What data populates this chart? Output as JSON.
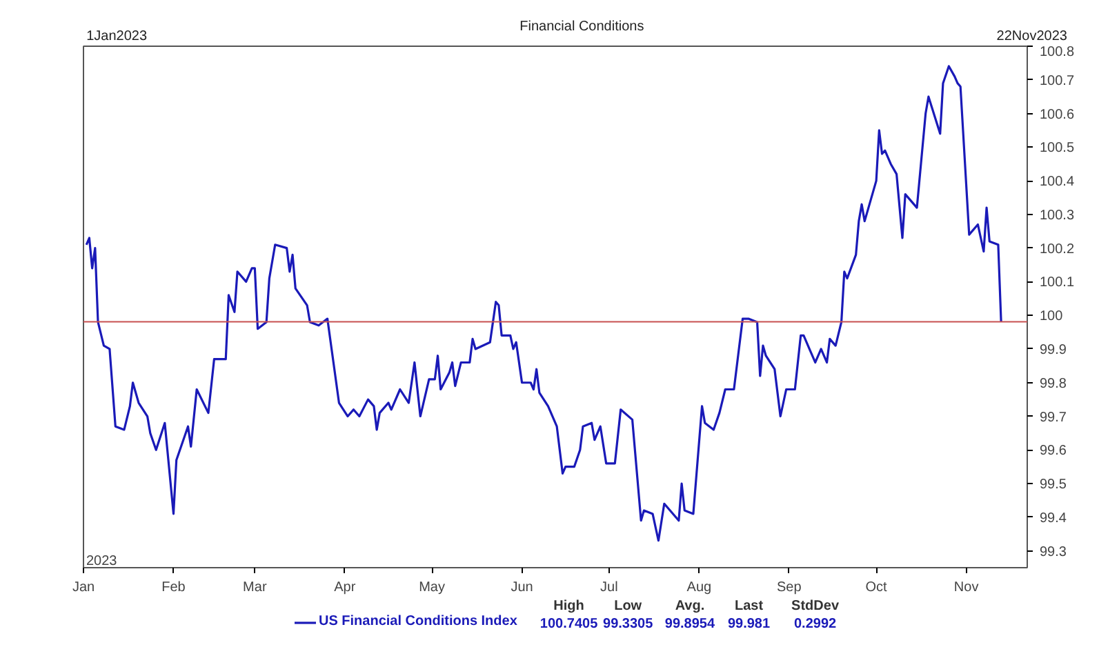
{
  "chart_data": {
    "type": "line",
    "title": "Financial Conditions",
    "x": [
      "2023-01-02",
      "2023-01-03",
      "2023-01-04",
      "2023-01-05",
      "2023-01-06",
      "2023-01-08",
      "2023-01-10",
      "2023-01-12",
      "2023-01-15",
      "2023-01-17",
      "2023-01-18",
      "2023-01-20",
      "2023-01-23",
      "2023-01-24",
      "2023-01-26",
      "2023-01-29",
      "2023-02-01",
      "2023-02-02",
      "2023-02-06",
      "2023-02-07",
      "2023-02-09",
      "2023-02-13",
      "2023-02-15",
      "2023-02-19",
      "2023-02-20",
      "2023-02-22",
      "2023-02-23",
      "2023-02-26",
      "2023-02-28",
      "2023-03-01",
      "2023-03-02",
      "2023-03-05",
      "2023-03-06",
      "2023-03-08",
      "2023-03-12",
      "2023-03-13",
      "2023-03-14",
      "2023-03-15",
      "2023-03-19",
      "2023-03-20",
      "2023-03-23",
      "2023-03-26",
      "2023-03-30",
      "2023-04-02",
      "2023-04-04",
      "2023-04-06",
      "2023-04-09",
      "2023-04-11",
      "2023-04-12",
      "2023-04-13",
      "2023-04-16",
      "2023-04-17",
      "2023-04-20",
      "2023-04-23",
      "2023-04-25",
      "2023-04-27",
      "2023-04-30",
      "2023-05-02",
      "2023-05-03",
      "2023-05-04",
      "2023-05-07",
      "2023-05-08",
      "2023-05-09",
      "2023-05-11",
      "2023-05-14",
      "2023-05-15",
      "2023-05-16",
      "2023-05-21",
      "2023-05-23",
      "2023-05-24",
      "2023-05-25",
      "2023-05-28",
      "2023-05-29",
      "2023-05-30",
      "2023-06-01",
      "2023-06-04",
      "2023-06-05",
      "2023-06-06",
      "2023-06-07",
      "2023-06-10",
      "2023-06-13",
      "2023-06-15",
      "2023-06-16",
      "2023-06-19",
      "2023-06-21",
      "2023-06-22",
      "2023-06-25",
      "2023-06-26",
      "2023-06-28",
      "2023-06-30",
      "2023-07-03",
      "2023-07-05",
      "2023-07-09",
      "2023-07-12",
      "2023-07-13",
      "2023-07-16",
      "2023-07-18",
      "2023-07-20",
      "2023-07-25",
      "2023-07-26",
      "2023-07-27",
      "2023-07-30",
      "2023-08-02",
      "2023-08-03",
      "2023-08-06",
      "2023-08-08",
      "2023-08-10",
      "2023-08-13",
      "2023-08-16",
      "2023-08-18",
      "2023-08-21",
      "2023-08-22",
      "2023-08-23",
      "2023-08-24",
      "2023-08-27",
      "2023-08-29",
      "2023-08-31",
      "2023-09-03",
      "2023-09-05",
      "2023-09-06",
      "2023-09-10",
      "2023-09-12",
      "2023-09-14",
      "2023-09-15",
      "2023-09-17",
      "2023-09-19",
      "2023-09-20",
      "2023-09-21",
      "2023-09-24",
      "2023-09-25",
      "2023-09-26",
      "2023-09-27",
      "2023-10-01",
      "2023-10-02",
      "2023-10-03",
      "2023-10-04",
      "2023-10-06",
      "2023-10-08",
      "2023-10-10",
      "2023-10-11",
      "2023-10-15",
      "2023-10-18",
      "2023-10-19",
      "2023-10-23",
      "2023-10-24",
      "2023-10-26",
      "2023-10-28",
      "2023-10-29",
      "2023-10-30",
      "2023-11-02",
      "2023-11-05",
      "2023-11-07",
      "2023-11-08",
      "2023-11-09",
      "2023-11-12",
      "2023-11-13"
    ],
    "series": [
      {
        "name": "US Financial Conditions Index",
        "color": "#1a1ab8",
        "values": [
          100.21,
          100.23,
          100.14,
          100.2,
          99.98,
          99.91,
          99.9,
          99.67,
          99.66,
          99.73,
          99.8,
          99.74,
          99.7,
          99.65,
          99.6,
          99.68,
          99.41,
          99.57,
          99.67,
          99.61,
          99.78,
          99.71,
          99.87,
          99.87,
          100.06,
          100.01,
          100.13,
          100.1,
          100.14,
          100.14,
          99.96,
          99.98,
          100.11,
          100.21,
          100.2,
          100.13,
          100.18,
          100.08,
          100.03,
          99.98,
          99.97,
          99.99,
          99.74,
          99.7,
          99.72,
          99.7,
          99.75,
          99.73,
          99.66,
          99.71,
          99.74,
          99.72,
          99.78,
          99.74,
          99.86,
          99.7,
          99.81,
          99.81,
          99.88,
          99.78,
          99.83,
          99.86,
          99.79,
          99.86,
          99.86,
          99.93,
          99.9,
          99.92,
          100.04,
          100.03,
          99.94,
          99.94,
          99.9,
          99.92,
          99.8,
          99.8,
          99.78,
          99.84,
          99.77,
          99.73,
          99.67,
          99.53,
          99.55,
          99.55,
          99.6,
          99.67,
          99.68,
          99.63,
          99.67,
          99.56,
          99.56,
          99.72,
          99.69,
          99.39,
          99.42,
          99.41,
          99.3305,
          99.44,
          99.39,
          99.5,
          99.42,
          99.41,
          99.73,
          99.68,
          99.66,
          99.71,
          99.78,
          99.78,
          99.99,
          99.99,
          99.98,
          99.82,
          99.91,
          99.88,
          99.84,
          99.7,
          99.78,
          99.78,
          99.94,
          99.94,
          99.86,
          99.9,
          99.86,
          99.93,
          99.91,
          99.98,
          100.13,
          100.11,
          100.18,
          100.28,
          100.33,
          100.28,
          100.4,
          100.55,
          100.48,
          100.49,
          100.45,
          100.42,
          100.23,
          100.36,
          100.32,
          100.6,
          100.65,
          100.54,
          100.69,
          100.7405,
          100.71,
          100.69,
          100.68,
          100.24,
          100.27,
          100.19,
          100.32,
          100.22,
          100.21,
          99.981
        ]
      }
    ],
    "xlim": [
      "2023-01-01",
      "2023-11-22"
    ],
    "xticks": [
      {
        "value": "2023-01-01",
        "label": "Jan"
      },
      {
        "value": "2023-02-01",
        "label": "Feb"
      },
      {
        "value": "2023-03-01",
        "label": "Mar"
      },
      {
        "value": "2023-04-01",
        "label": "Apr"
      },
      {
        "value": "2023-05-01",
        "label": "May"
      },
      {
        "value": "2023-06-01",
        "label": "Jun"
      },
      {
        "value": "2023-07-01",
        "label": "Jul"
      },
      {
        "value": "2023-08-01",
        "label": "Aug"
      },
      {
        "value": "2023-09-01",
        "label": "Sep"
      },
      {
        "value": "2023-10-01",
        "label": "Oct"
      },
      {
        "value": "2023-11-01",
        "label": "Nov"
      }
    ],
    "ylim": [
      99.25,
      100.8
    ],
    "yticks": [
      99.3,
      99.4,
      99.5,
      99.6,
      99.7,
      99.8,
      99.9,
      100,
      100.1,
      100.2,
      100.3,
      100.4,
      100.5,
      100.6,
      100.7,
      100.8
    ],
    "ref_lines": [
      {
        "axis": "y",
        "value": 99.981,
        "color": "#c85050"
      }
    ],
    "grid": false,
    "legend": "bottom",
    "annotations": [
      "1Jan2023",
      "22Nov2023",
      "2023",
      "High",
      "Low",
      "Avg.",
      "Last",
      "StdDev",
      "100.7405",
      "99.3305",
      "99.8954",
      "99.981",
      "0.2992"
    ]
  }
}
